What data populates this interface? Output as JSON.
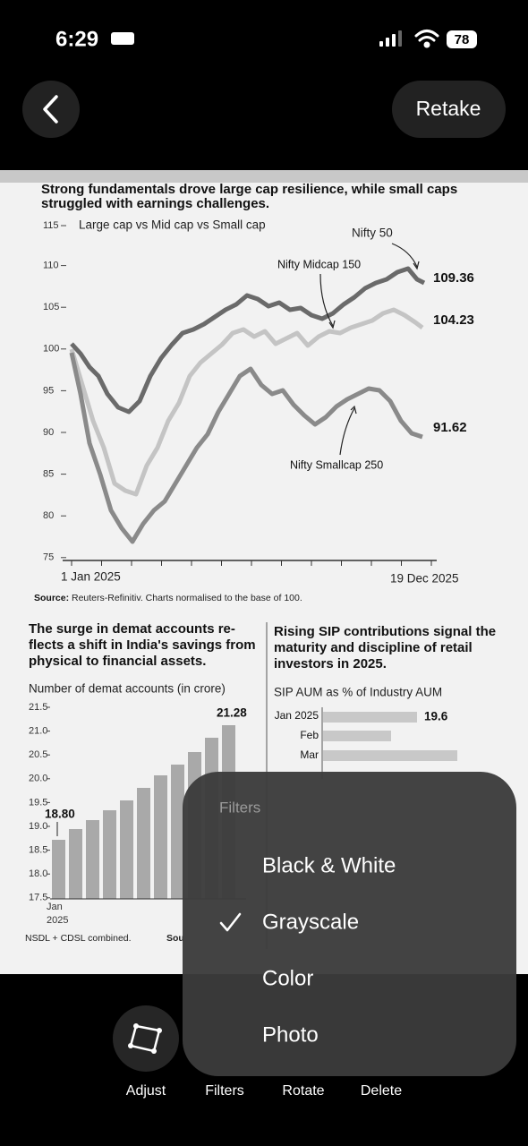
{
  "status_bar": {
    "time": "6:29",
    "battery": "78"
  },
  "top_bar": {
    "retake": "Retake"
  },
  "document": {
    "main_chart": {
      "title_lines": [
        "Strong fundamentals drove large cap resilience, while small caps",
        "struggled with earnings challenges."
      ],
      "subtitle": "Large cap vs Mid cap vs Small cap",
      "yticks": [
        "115",
        "110",
        "105",
        "100",
        "95",
        "90",
        "85",
        "80",
        "75"
      ],
      "series_labels": [
        "Nifty 50",
        "Nifty Midcap 150",
        "Nifty Smallcap 250"
      ],
      "end_values": [
        "109.36",
        "104.23",
        "91.62"
      ],
      "x_labels": [
        "1 Jan 2025",
        "19 Dec 2025"
      ],
      "source_label": "Source:",
      "source_text": "Reuters-Refinitiv. Charts normalised to the base of 100."
    },
    "demat_chart": {
      "title_lines": [
        "The surge in demat accounts re-",
        "flects a shift in India's savings from",
        "physical to financial assets."
      ],
      "subtitle": "Number of demat accounts (in crore)",
      "yticks": [
        "21.5",
        "21.0",
        "20.5",
        "20.0",
        "19.5",
        "19.0",
        "18.5",
        "18.0",
        "17.5"
      ],
      "first_value": "18.80",
      "last_value": "21.28",
      "x_label_lines": [
        "Jan",
        "2025"
      ],
      "note": "NSDL + CDSL combined.",
      "source_fragment": "Sou"
    },
    "sip_chart": {
      "title_lines": [
        "Rising SIP contributions signal the",
        "maturity and discipline of retail",
        "investors in 2025."
      ],
      "subtitle": "SIP AUM as % of Industry AUM",
      "categories": [
        "Jan 2025",
        "Feb",
        "Mar"
      ],
      "first_value": "19.6"
    }
  },
  "filter_menu": {
    "header": "Filters",
    "options": [
      "Black & White",
      "Grayscale",
      "Color",
      "Photo"
    ],
    "selected": "Grayscale"
  },
  "toolbar": {
    "items": [
      "Adjust",
      "Filters",
      "Rotate",
      "Delete"
    ]
  }
}
